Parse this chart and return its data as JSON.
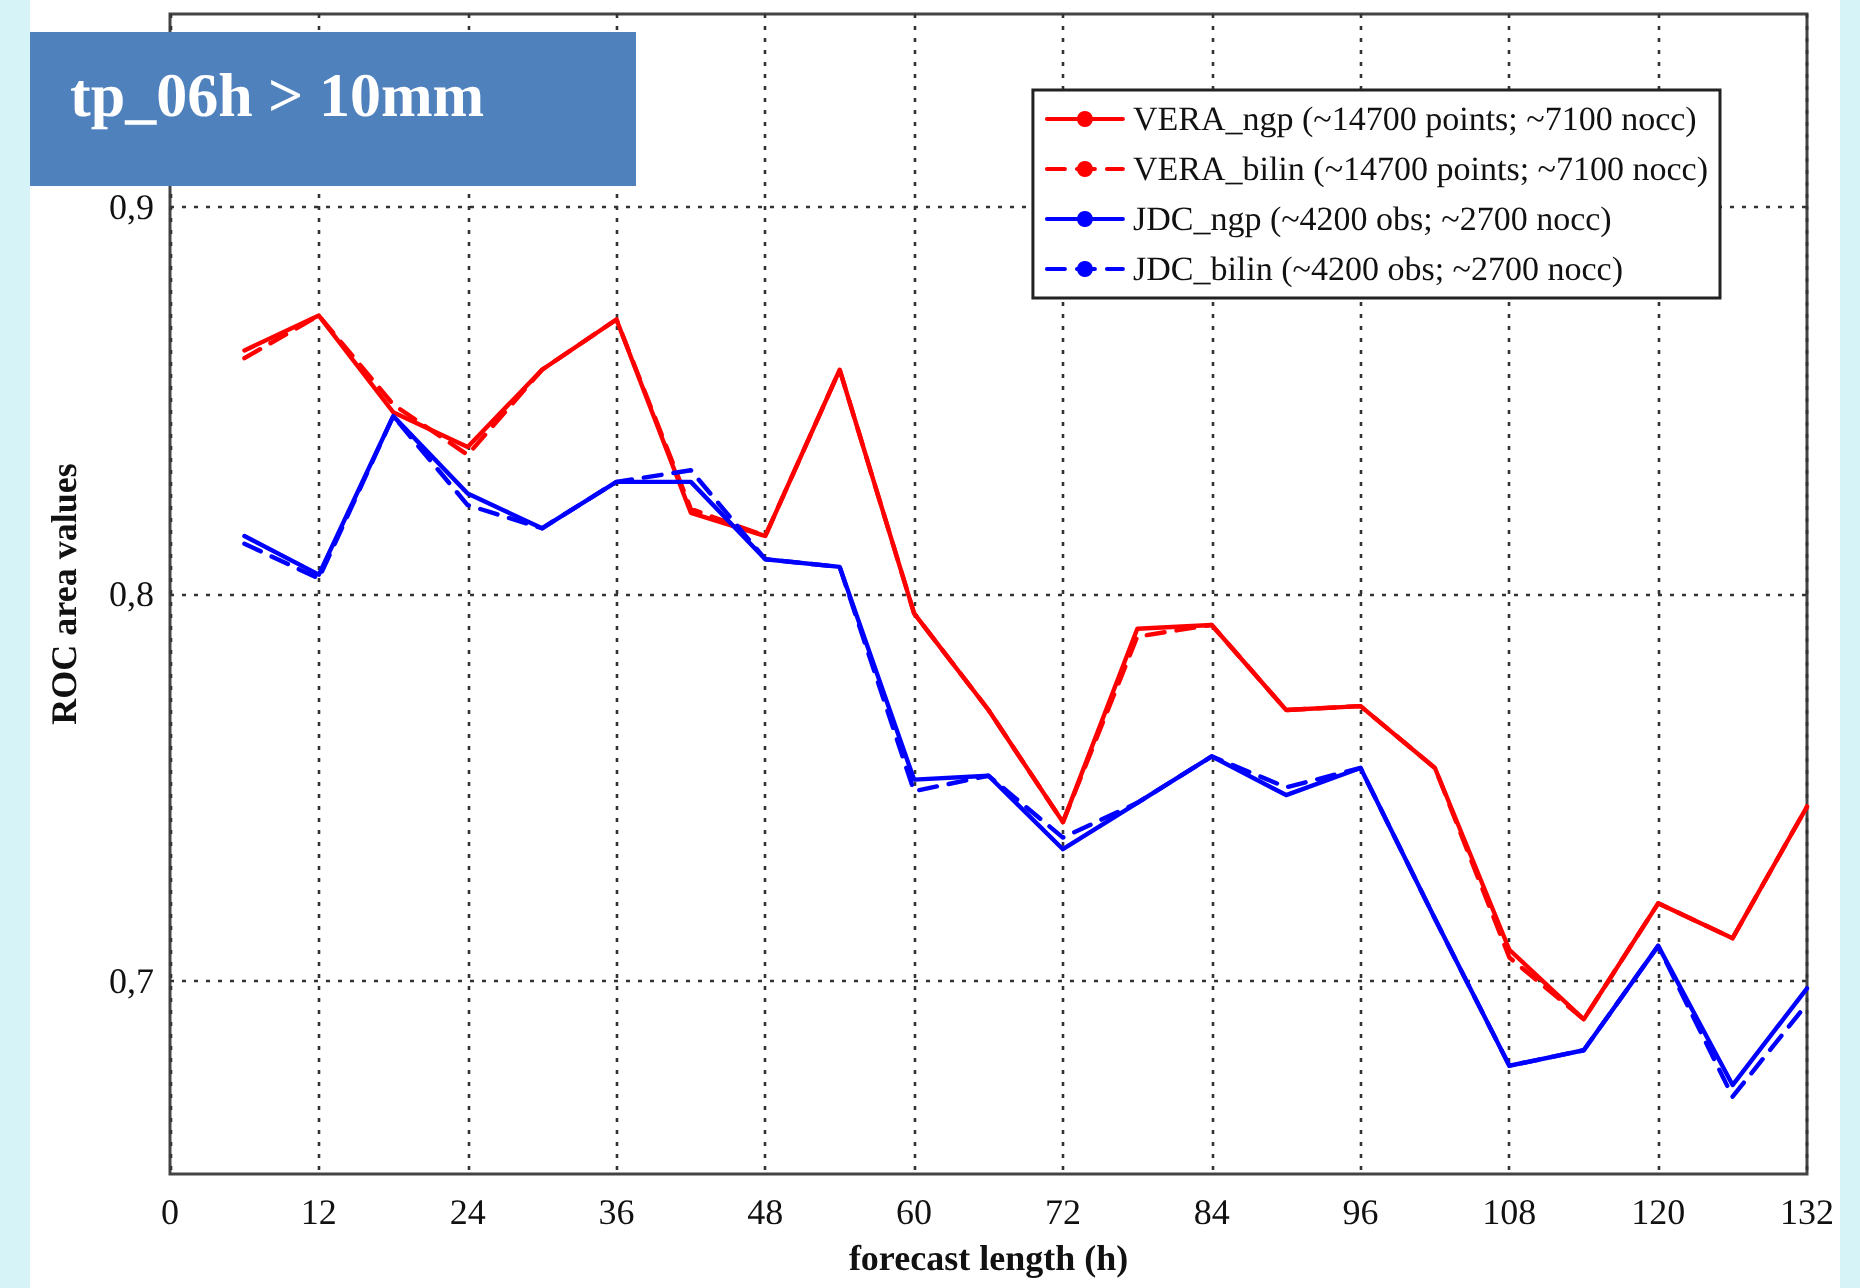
{
  "chart_data": {
    "type": "line",
    "title": "tp_06h > 10mm",
    "xlabel": "forecast length (h)",
    "ylabel": "ROC area values",
    "x": [
      6,
      12,
      18,
      24,
      30,
      36,
      42,
      48,
      54,
      60,
      66,
      72,
      78,
      84,
      90,
      96,
      102,
      108,
      114,
      120,
      126,
      132
    ],
    "series": [
      {
        "name": "VERA_ngp (~14700 points; ~7100 nocc)",
        "color": "#ff0000",
        "line_style": "solid",
        "values": [
          0.863,
          0.872,
          0.847,
          0.838,
          0.858,
          0.871,
          0.821,
          0.815,
          0.858,
          0.795,
          0.77,
          0.741,
          0.791,
          0.792,
          0.77,
          0.771,
          0.755,
          0.708,
          0.69,
          0.72,
          0.711,
          0.745
        ]
      },
      {
        "name": "VERA_bilin (~14700 points; ~7100 nocc)",
        "color": "#ff0000",
        "line_style": "dashed",
        "values": [
          0.861,
          0.872,
          0.849,
          0.836,
          0.858,
          0.871,
          0.822,
          0.815,
          0.858,
          0.795,
          0.77,
          0.741,
          0.789,
          0.792,
          0.77,
          0.771,
          0.755,
          0.706,
          0.69,
          0.72,
          0.711,
          0.745
        ]
      },
      {
        "name": "JDC_ngp (~4200 obs; ~2700 nocc)",
        "color": "#0000ff",
        "line_style": "solid",
        "values": [
          0.815,
          0.805,
          0.846,
          0.826,
          0.817,
          0.829,
          0.829,
          0.809,
          0.807,
          0.752,
          0.753,
          0.734,
          0.746,
          0.758,
          0.748,
          0.755,
          0.716,
          0.678,
          0.682,
          0.709,
          0.673,
          0.698
        ]
      },
      {
        "name": "JDC_bilin (~4200 obs; ~2700 nocc)",
        "color": "#0000ff",
        "line_style": "dashed",
        "values": [
          0.813,
          0.804,
          0.846,
          0.823,
          0.817,
          0.829,
          0.832,
          0.809,
          0.807,
          0.749,
          0.753,
          0.737,
          0.746,
          0.758,
          0.75,
          0.755,
          0.716,
          0.678,
          0.682,
          0.709,
          0.67,
          0.694
        ]
      }
    ],
    "xlim": [
      0,
      132
    ],
    "xticks": [
      0,
      12,
      24,
      36,
      48,
      60,
      72,
      84,
      96,
      108,
      120,
      132
    ],
    "ylim": [
      0.65,
      0.95
    ],
    "yticks": [
      {
        "value": 0.7,
        "label": "0,7"
      },
      {
        "value": 0.8,
        "label": "0,8"
      },
      {
        "value": 0.9,
        "label": "0,9"
      }
    ],
    "grid": true,
    "legend": "top right",
    "marker": "none"
  }
}
